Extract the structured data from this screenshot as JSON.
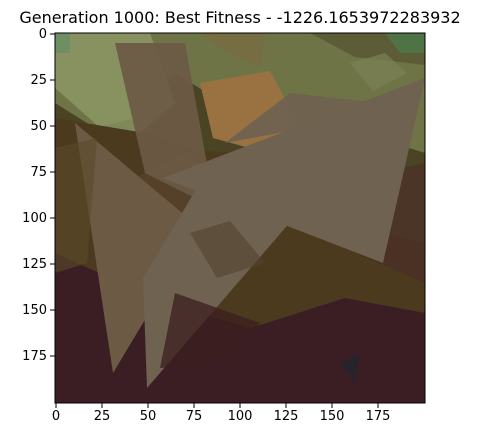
{
  "figure": {
    "title": "Generation 1000: Best Fitness - -1226.1653972283932"
  },
  "axes": {
    "x_ticks": [
      {
        "label": "0",
        "value": 0
      },
      {
        "label": "25",
        "value": 25
      },
      {
        "label": "50",
        "value": 50
      },
      {
        "label": "75",
        "value": 75
      },
      {
        "label": "100",
        "value": 100
      },
      {
        "label": "125",
        "value": 125
      },
      {
        "label": "150",
        "value": 150
      },
      {
        "label": "175",
        "value": 175
      }
    ],
    "y_ticks": [
      {
        "label": "0",
        "value": 0
      },
      {
        "label": "25",
        "value": 25
      },
      {
        "label": "50",
        "value": 50
      },
      {
        "label": "75",
        "value": 75
      },
      {
        "label": "100",
        "value": 100
      },
      {
        "label": "125",
        "value": 125
      },
      {
        "label": "150",
        "value": 150
      },
      {
        "label": "175",
        "value": 175
      }
    ],
    "xlim": [
      0,
      200
    ],
    "ylim": [
      200,
      0
    ]
  },
  "colors": {
    "frame": "#000000",
    "background": "#ffffff",
    "olive_dark": "#4a4425",
    "olive_green": "#6f7446",
    "light_green": "#8d9a66",
    "brown_dark": "#4b3a1e",
    "brown_mid": "#6d5a45",
    "taupe": "#6f6250",
    "maroon": "#3a1e24",
    "maroon_mid": "#4a2a2a",
    "orange_brown": "#9a7242",
    "dark_red": "#3b1f1f"
  }
}
